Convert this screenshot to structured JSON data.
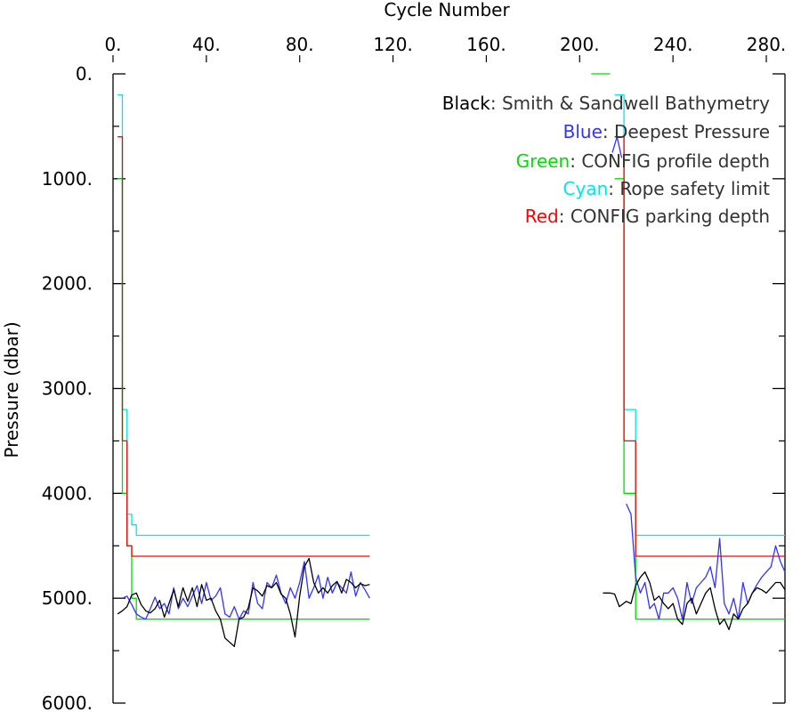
{
  "chart_data": {
    "type": "line",
    "xlabel": "Cycle Number",
    "ylabel": "Pressure (dbar)",
    "xlim": [
      0,
      288
    ],
    "ylim": [
      0,
      6000
    ],
    "y_inverted": true,
    "x_axis_position": "top",
    "x_ticks": [
      0,
      40,
      80,
      120,
      160,
      200,
      240,
      280
    ],
    "x_tick_labels": [
      "0.",
      "40.",
      "80.",
      "120.",
      "160.",
      "200.",
      "240.",
      "280."
    ],
    "y_ticks": [
      0,
      1000,
      2000,
      3000,
      4000,
      5000,
      6000
    ],
    "y_tick_labels": [
      "0.",
      "1000.",
      "2000.",
      "3000.",
      "4000.",
      "5000.",
      "6000."
    ],
    "legend_position": "top-right",
    "legend": [
      {
        "color_word": "Black",
        "rest": ": Smith & Sandwell Bathymetry",
        "color": "#000000"
      },
      {
        "color_word": "Blue",
        "rest": ": Deepest Pressure",
        "color": "#3333ff"
      },
      {
        "color_word": "Green",
        "rest": ": CONFIG profile depth",
        "color": "#00dd00"
      },
      {
        "color_word": "Cyan",
        "rest": ": Rope safety limit",
        "color": "#00e5e5"
      },
      {
        "color_word": "Red",
        "rest": ": CONFIG parking depth",
        "color": "#ff0000"
      }
    ],
    "series": [
      {
        "name": "Smith & Sandwell Bathymetry",
        "color": "#000000",
        "segments": [
          [
            [
              2,
              5150
            ],
            [
              4,
              5120
            ],
            [
              6,
              5080
            ],
            [
              8,
              4970
            ],
            [
              10,
              4950
            ],
            [
              12,
              5060
            ],
            [
              14,
              5120
            ],
            [
              16,
              5140
            ],
            [
              18,
              5100
            ],
            [
              20,
              5020
            ],
            [
              22,
              5180
            ],
            [
              24,
              5050
            ],
            [
              26,
              4920
            ],
            [
              28,
              5080
            ],
            [
              30,
              4900
            ],
            [
              32,
              5030
            ],
            [
              34,
              4900
            ],
            [
              36,
              5080
            ],
            [
              38,
              4870
            ],
            [
              40,
              5020
            ],
            [
              42,
              5000
            ],
            [
              44,
              5120
            ],
            [
              46,
              5200
            ],
            [
              48,
              5380
            ],
            [
              50,
              5420
            ],
            [
              52,
              5460
            ],
            [
              54,
              5200
            ],
            [
              56,
              5180
            ],
            [
              58,
              5090
            ],
            [
              60,
              4900
            ],
            [
              62,
              4930
            ],
            [
              64,
              4980
            ],
            [
              66,
              4880
            ],
            [
              68,
              4900
            ],
            [
              70,
              4850
            ],
            [
              72,
              4960
            ],
            [
              74,
              5000
            ],
            [
              76,
              5150
            ],
            [
              78,
              5370
            ],
            [
              80,
              4980
            ],
            [
              82,
              4700
            ],
            [
              84,
              4620
            ],
            [
              86,
              4850
            ],
            [
              88,
              4950
            ],
            [
              90,
              4900
            ],
            [
              92,
              4950
            ],
            [
              94,
              4880
            ],
            [
              96,
              4840
            ],
            [
              98,
              4950
            ],
            [
              100,
              4820
            ],
            [
              102,
              4850
            ],
            [
              104,
              4900
            ],
            [
              106,
              4860
            ],
            [
              108,
              4880
            ],
            [
              110,
              4870
            ]
          ],
          [
            [
              210,
              4950
            ],
            [
              213,
              4950
            ],
            [
              215,
              4960
            ],
            [
              217,
              5080
            ],
            [
              220,
              5030
            ],
            [
              222,
              5050
            ],
            [
              224,
              4880
            ],
            [
              226,
              4800
            ],
            [
              228,
              4750
            ],
            [
              230,
              4850
            ],
            [
              232,
              5020
            ],
            [
              234,
              4980
            ],
            [
              236,
              5050
            ],
            [
              238,
              5100
            ],
            [
              240,
              5050
            ],
            [
              242,
              5200
            ],
            [
              244,
              5250
            ],
            [
              246,
              5050
            ],
            [
              248,
              5000
            ],
            [
              250,
              5150
            ],
            [
              252,
              5050
            ],
            [
              254,
              4950
            ],
            [
              256,
              4900
            ],
            [
              258,
              5100
            ],
            [
              260,
              5250
            ],
            [
              262,
              5200
            ],
            [
              264,
              5300
            ],
            [
              266,
              5150
            ],
            [
              268,
              5200
            ],
            [
              270,
              5100
            ],
            [
              272,
              5050
            ],
            [
              274,
              4950
            ],
            [
              276,
              4900
            ],
            [
              278,
              4920
            ],
            [
              280,
              4950
            ],
            [
              282,
              4900
            ],
            [
              284,
              4850
            ],
            [
              286,
              4850
            ],
            [
              288,
              4920
            ]
          ]
        ]
      },
      {
        "name": "Deepest Pressure",
        "color": "#3333ff",
        "segments": [
          [
            [
              4,
              5000
            ],
            [
              6,
              4980
            ],
            [
              8,
              5060
            ],
            [
              10,
              5150
            ],
            [
              12,
              5180
            ],
            [
              14,
              5200
            ],
            [
              16,
              5100
            ],
            [
              18,
              4990
            ],
            [
              20,
              5100
            ],
            [
              22,
              5050
            ],
            [
              24,
              5150
            ],
            [
              26,
              4900
            ],
            [
              28,
              5100
            ],
            [
              30,
              5000
            ],
            [
              32,
              5080
            ],
            [
              34,
              4980
            ],
            [
              36,
              4880
            ],
            [
              38,
              5050
            ],
            [
              40,
              4850
            ],
            [
              42,
              5020
            ],
            [
              44,
              4980
            ],
            [
              46,
              4900
            ],
            [
              48,
              5150
            ],
            [
              50,
              5180
            ],
            [
              52,
              5080
            ],
            [
              54,
              5200
            ],
            [
              56,
              5120
            ],
            [
              58,
              5150
            ],
            [
              60,
              4850
            ],
            [
              62,
              5050
            ],
            [
              64,
              5100
            ],
            [
              66,
              4850
            ],
            [
              68,
              4900
            ],
            [
              70,
              4780
            ],
            [
              72,
              4950
            ],
            [
              74,
              5050
            ],
            [
              76,
              4900
            ],
            [
              78,
              5000
            ],
            [
              80,
              4850
            ],
            [
              82,
              4650
            ],
            [
              84,
              5000
            ],
            [
              86,
              4900
            ],
            [
              88,
              4780
            ],
            [
              90,
              5000
            ],
            [
              92,
              4800
            ],
            [
              94,
              4950
            ],
            [
              96,
              4850
            ],
            [
              98,
              4900
            ],
            [
              100,
              4950
            ],
            [
              102,
              4750
            ],
            [
              104,
              4980
            ],
            [
              106,
              4850
            ],
            [
              108,
              4920
            ],
            [
              110,
              5000
            ]
          ],
          [
            [
              214,
              750
            ],
            [
              216,
              600
            ],
            [
              218,
              800
            ]
          ],
          [
            [
              220,
              4100
            ],
            [
              222,
              4200
            ],
            [
              224,
              4800
            ],
            [
              226,
              4950
            ],
            [
              228,
              4850
            ],
            [
              230,
              5100
            ],
            [
              232,
              5050
            ],
            [
              234,
              5200
            ],
            [
              236,
              4950
            ],
            [
              238,
              4950
            ],
            [
              240,
              4900
            ],
            [
              242,
              5000
            ],
            [
              244,
              5200
            ],
            [
              246,
              4850
            ],
            [
              248,
              5050
            ],
            [
              250,
              4900
            ],
            [
              252,
              4850
            ],
            [
              254,
              4800
            ],
            [
              256,
              4700
            ],
            [
              258,
              4900
            ],
            [
              260,
              4430
            ],
            [
              262,
              5050
            ],
            [
              264,
              5150
            ],
            [
              266,
              5000
            ],
            [
              268,
              5200
            ],
            [
              270,
              4850
            ],
            [
              272,
              5050
            ],
            [
              274,
              4950
            ],
            [
              276,
              4870
            ],
            [
              278,
              4800
            ],
            [
              280,
              4750
            ],
            [
              282,
              4700
            ],
            [
              284,
              4500
            ],
            [
              286,
              4650
            ],
            [
              288,
              4750
            ]
          ]
        ]
      },
      {
        "name": "CONFIG profile depth",
        "color": "#00dd00",
        "segments": [
          [
            [
              2,
              1000
            ],
            [
              4,
              1000
            ],
            [
              4,
              4000
            ],
            [
              6,
              4000
            ],
            [
              6,
              4500
            ],
            [
              8,
              4500
            ],
            [
              8,
              5000
            ],
            [
              10,
              5000
            ],
            [
              10,
              5200
            ],
            [
              110,
              5200
            ]
          ],
          [
            [
              205,
              0
            ],
            [
              213,
              0
            ]
          ],
          [
            [
              215,
              1000
            ],
            [
              219,
              1000
            ],
            [
              219,
              4000
            ],
            [
              224,
              4000
            ],
            [
              224,
              5200
            ],
            [
              288,
              5200
            ]
          ]
        ]
      },
      {
        "name": "Rope safety limit",
        "color": "#00e5e5",
        "segments": [
          [
            [
              2,
              200
            ],
            [
              4,
              200
            ],
            [
              4,
              3200
            ],
            [
              6,
              3200
            ],
            [
              6,
              4200
            ],
            [
              8,
              4200
            ],
            [
              8,
              4300
            ],
            [
              10,
              4300
            ],
            [
              10,
              4400
            ],
            [
              110,
              4400
            ]
          ],
          [
            [
              215,
              200
            ],
            [
              219,
              200
            ],
            [
              219,
              3200
            ],
            [
              224,
              3200
            ],
            [
              224,
              4400
            ],
            [
              288,
              4400
            ]
          ]
        ]
      },
      {
        "name": "CONFIG parking depth",
        "color": "#ff0000",
        "segments": [
          [
            [
              2,
              600
            ],
            [
              4,
              600
            ],
            [
              4,
              3500
            ],
            [
              6,
              3500
            ],
            [
              6,
              4500
            ],
            [
              8,
              4500
            ],
            [
              8,
              4600
            ],
            [
              110,
              4600
            ]
          ],
          [
            [
              215,
              600
            ],
            [
              219,
              600
            ],
            [
              219,
              3500
            ],
            [
              224,
              3500
            ],
            [
              224,
              4600
            ],
            [
              288,
              4600
            ]
          ]
        ]
      }
    ]
  }
}
